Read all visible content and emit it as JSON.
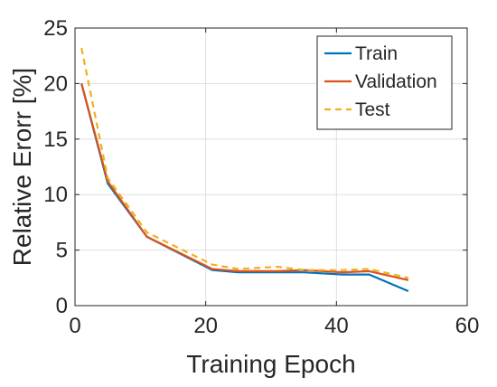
{
  "chart_data": {
    "type": "line",
    "xlabel": "Training Epoch",
    "ylabel": "Relative Erorr [%]",
    "xlim": [
      0,
      60
    ],
    "ylim": [
      0,
      25
    ],
    "xticks": [
      0,
      20,
      40,
      60
    ],
    "yticks": [
      0,
      5,
      10,
      15,
      20,
      25
    ],
    "grid": true,
    "legend_position": "top-right",
    "series": [
      {
        "name": "Train",
        "color": "#0072BD",
        "style": "solid",
        "x": [
          1,
          5,
          11,
          21,
          25,
          31,
          35,
          41,
          45,
          51
        ],
        "y": [
          20.0,
          11.0,
          6.2,
          3.2,
          3.0,
          3.0,
          3.0,
          2.8,
          2.8,
          1.3
        ]
      },
      {
        "name": "Validation",
        "color": "#D95319",
        "style": "solid",
        "x": [
          1,
          5,
          11,
          21,
          25,
          31,
          35,
          41,
          45,
          51
        ],
        "y": [
          20.0,
          11.2,
          6.2,
          3.3,
          3.1,
          3.1,
          3.2,
          3.0,
          3.1,
          2.3
        ]
      },
      {
        "name": "Test",
        "color": "#EDB120",
        "style": "dashed",
        "x": [
          1,
          5,
          11,
          21,
          25,
          31,
          35,
          41,
          45,
          51
        ],
        "y": [
          23.2,
          11.5,
          6.6,
          3.7,
          3.3,
          3.5,
          3.2,
          3.2,
          3.3,
          2.5
        ]
      }
    ]
  }
}
